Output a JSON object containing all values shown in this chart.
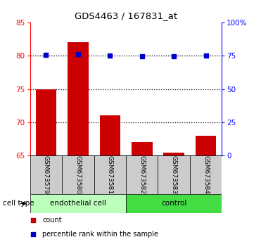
{
  "title": "GDS4463 / 167831_at",
  "samples": [
    "GSM673579",
    "GSM673580",
    "GSM673581",
    "GSM673582",
    "GSM673583",
    "GSM673584"
  ],
  "bar_values": [
    75.0,
    82.0,
    71.0,
    67.0,
    65.5,
    68.0
  ],
  "percentile_values": [
    75.5,
    76.0,
    75.0,
    74.5,
    74.5,
    75.0
  ],
  "left_ylim": [
    65,
    85
  ],
  "left_yticks": [
    65,
    70,
    75,
    80,
    85
  ],
  "right_ylim": [
    0,
    100
  ],
  "right_yticks": [
    0,
    25,
    50,
    75,
    100
  ],
  "right_yticklabels": [
    "0",
    "25",
    "50",
    "75",
    "100%"
  ],
  "bar_color": "#cc0000",
  "dot_color": "#0000cc",
  "bar_width": 0.65,
  "groups": [
    {
      "label": "endothelial cell",
      "indices": [
        0,
        1,
        2
      ],
      "color": "#bbffbb"
    },
    {
      "label": "control",
      "indices": [
        3,
        4,
        5
      ],
      "color": "#44dd44"
    }
  ],
  "group_label": "cell type",
  "legend_items": [
    {
      "color": "#cc0000",
      "label": "count"
    },
    {
      "color": "#0000cc",
      "label": "percentile rank within the sample"
    }
  ],
  "grid_yticks": [
    70,
    75,
    80
  ],
  "tick_area_color": "#cccccc"
}
